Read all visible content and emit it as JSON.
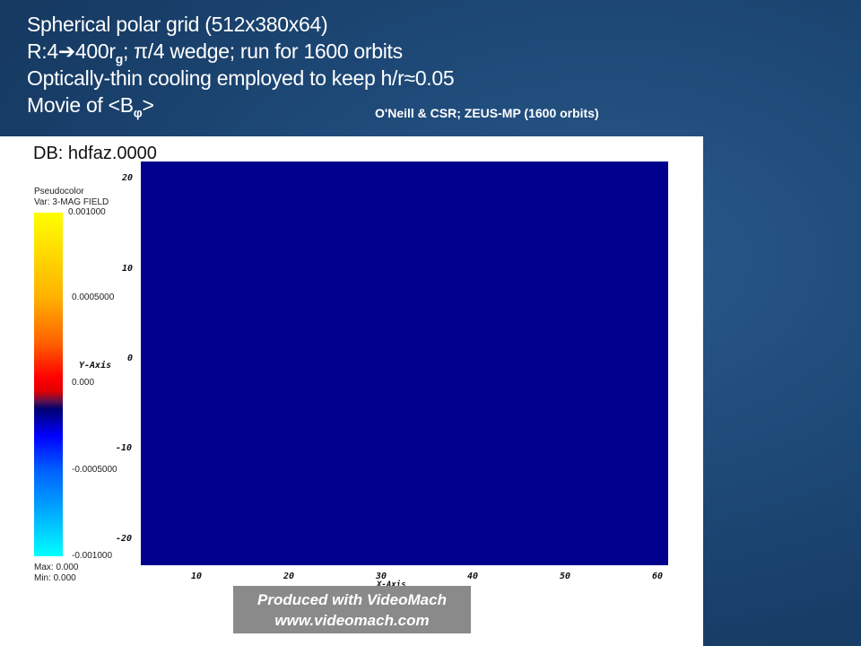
{
  "header": {
    "line1": "Spherical polar grid (512x380x64)",
    "line2_a": "R:4",
    "line2_arrow": "➔",
    "line2_b": "400r",
    "line2_sub": "g",
    "line2_c": "; π/4 wedge; run for 1600 orbits",
    "line3": "Optically-thin cooling employed to keep h/r≈0.05",
    "line4_a": "Movie of <B",
    "line4_sub": "φ",
    "line4_b": ">",
    "credit": "O'Neill & CSR;  ZEUS-MP (1600 orbits)"
  },
  "plot": {
    "db": "DB: hdfaz.0000",
    "legend_title": "Pseudocolor",
    "legend_var": "Var: 3-MAG FIELD",
    "colorbar_ticks": [
      "0.001000",
      "0.0005000",
      "0.000",
      "-0.0005000",
      "-0.001000"
    ],
    "max": "Max:  0.000",
    "min": "Min:  0.000",
    "y_label": "Y-Axis",
    "x_label": "X-Axis",
    "y_ticks": [
      "20",
      "10",
      "0",
      "-10",
      "-20"
    ],
    "x_ticks": [
      "10",
      "20",
      "30",
      "40",
      "50",
      "60"
    ],
    "fill_color": "#00008c"
  },
  "watermark": {
    "line1": "Produced with VideoMach",
    "line2": "www.videomach.com"
  }
}
